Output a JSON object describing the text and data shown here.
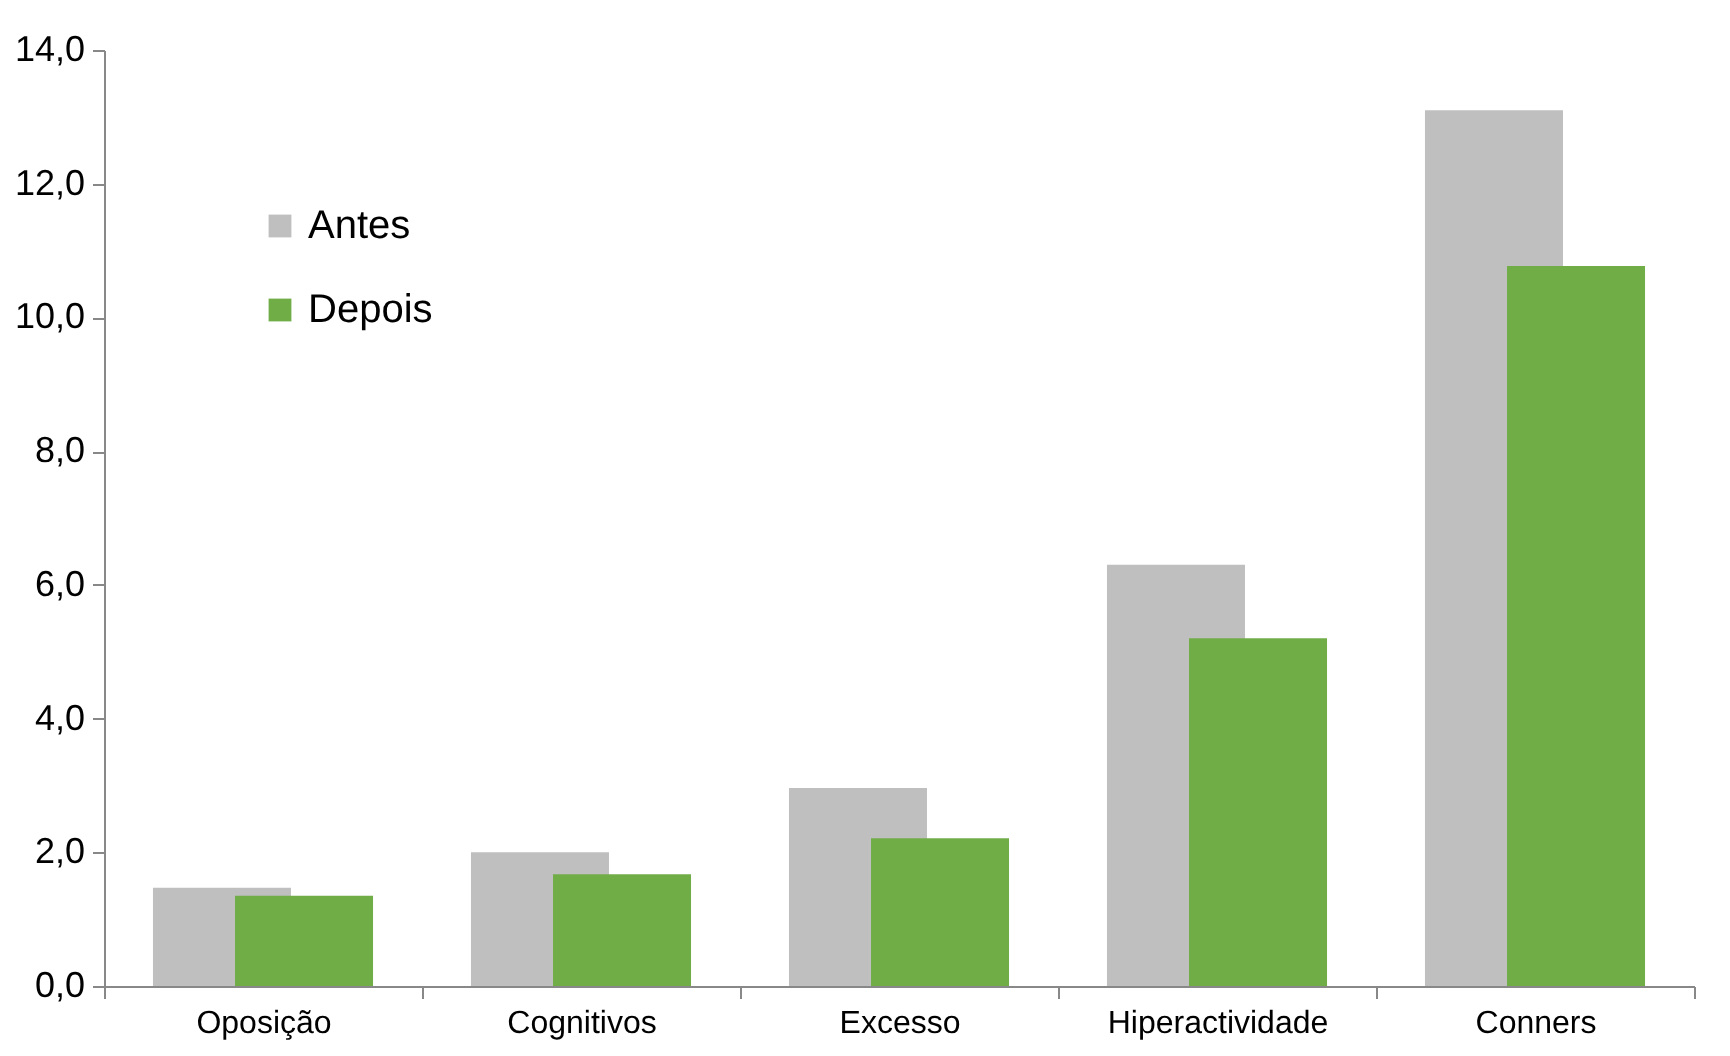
{
  "chart_data": {
    "type": "bar",
    "categories": [
      "Oposição",
      "Cognitivos",
      "Excesso",
      "Hiperactividade",
      "Conners"
    ],
    "series": [
      {
        "name": "Antes",
        "color": "#bfbfbf",
        "values": [
          1.47,
          2.0,
          2.96,
          6.3,
          13.1
        ]
      },
      {
        "name": "Depois",
        "color": "#70ad47",
        "values": [
          1.35,
          1.67,
          2.21,
          5.2,
          10.77
        ]
      }
    ],
    "ylim": [
      0,
      14
    ],
    "yticks": [
      {
        "value": 0,
        "label": "0,0"
      },
      {
        "value": 2,
        "label": "2,0"
      },
      {
        "value": 4,
        "label": "4,0"
      },
      {
        "value": 6,
        "label": "6,0"
      },
      {
        "value": 8,
        "label": "8,0"
      },
      {
        "value": 10,
        "label": "10,0"
      },
      {
        "value": 12,
        "label": "12,0"
      },
      {
        "value": 14,
        "label": "14,0"
      }
    ],
    "legend": "top left"
  }
}
